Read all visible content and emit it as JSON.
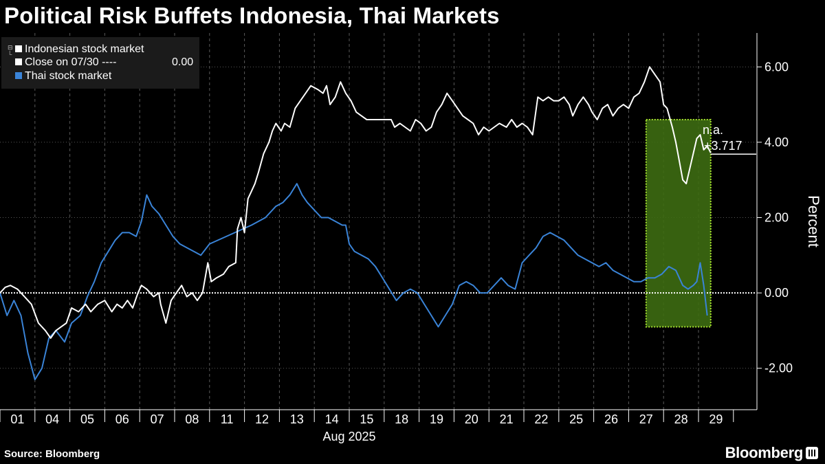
{
  "header": {
    "title": "Political Risk Buffets Indonesia, Thai Markets"
  },
  "footer": {
    "source": "Source: Bloomberg",
    "brand": "Bloomberg"
  },
  "legend": {
    "items": [
      {
        "label": "Indonesian stock market",
        "color": "#ffffff"
      },
      {
        "label": "Close on 07/30 ----",
        "value": "0.00",
        "color": "#ffffff"
      },
      {
        "label": "Thai stock market",
        "color": "#3a84d8"
      }
    ],
    "icons": [
      "tree-expand-icon",
      "tree-branch-icon"
    ]
  },
  "annotations": {
    "na_label": "n.a.",
    "last_value_label": "+3.717"
  },
  "colors": {
    "background": "#000000",
    "indonesia": "#ffffff",
    "thailand": "#3a84d8",
    "highlight_fill": "#3d6b12",
    "highlight_border": "#a6e22e",
    "grid": "#5a5a5a"
  },
  "chart_data": {
    "type": "line",
    "title": "Political Risk Buffets Indonesia, Thai Markets",
    "xlabel": "Aug 2025",
    "ylabel": "Percent",
    "ylim": [
      -3.1,
      6.9
    ],
    "yticks": [
      -2.0,
      0.0,
      2.0,
      4.0,
      6.0
    ],
    "ytick_labels": [
      "-2.00",
      "0.00",
      "2.00",
      "4.00",
      "6.00"
    ],
    "reference_line": {
      "name": "Close on 07/30",
      "value": 0.0
    },
    "categories": [
      "01",
      "04",
      "05",
      "06",
      "07",
      "08",
      "11",
      "12",
      "13",
      "14",
      "15",
      "18",
      "19",
      "20",
      "21",
      "22",
      "25",
      "26",
      "27",
      "28",
      "29"
    ],
    "x_start_date": "2025-08-01",
    "grid": true,
    "legend_position": "top-left",
    "series": [
      {
        "name": "Indonesian stock market",
        "points": [
          [
            0.0,
            0.0
          ],
          [
            0.15,
            0.15
          ],
          [
            0.3,
            0.2
          ],
          [
            0.5,
            0.1
          ],
          [
            0.7,
            -0.1
          ],
          [
            0.9,
            -0.3
          ],
          [
            1.1,
            -0.8
          ],
          [
            1.3,
            -1.0
          ],
          [
            1.45,
            -1.2
          ],
          [
            1.6,
            -1.0
          ],
          [
            1.75,
            -0.9
          ],
          [
            1.9,
            -0.8
          ],
          [
            2.05,
            -0.4
          ],
          [
            2.25,
            -0.5
          ],
          [
            2.45,
            -0.3
          ],
          [
            2.6,
            -0.5
          ],
          [
            2.8,
            -0.3
          ],
          [
            3.0,
            -0.2
          ],
          [
            3.2,
            -0.5
          ],
          [
            3.35,
            -0.3
          ],
          [
            3.5,
            -0.4
          ],
          [
            3.65,
            -0.2
          ],
          [
            3.8,
            -0.4
          ],
          [
            3.95,
            0.0
          ],
          [
            4.05,
            0.2
          ],
          [
            4.2,
            0.1
          ],
          [
            4.4,
            -0.1
          ],
          [
            4.55,
            0.0
          ],
          [
            4.6,
            -0.3
          ],
          [
            4.75,
            -0.8
          ],
          [
            4.9,
            -0.2
          ],
          [
            5.05,
            0.0
          ],
          [
            5.2,
            0.2
          ],
          [
            5.35,
            -0.1
          ],
          [
            5.5,
            0.0
          ],
          [
            5.65,
            -0.2
          ],
          [
            5.8,
            0.0
          ],
          [
            5.95,
            0.8
          ],
          [
            6.05,
            0.3
          ],
          [
            6.2,
            0.4
          ],
          [
            6.4,
            0.5
          ],
          [
            6.55,
            0.7
          ],
          [
            6.75,
            0.8
          ],
          [
            6.8,
            1.7
          ],
          [
            6.9,
            2.0
          ],
          [
            7.0,
            1.6
          ],
          [
            7.1,
            2.5
          ],
          [
            7.2,
            2.7
          ],
          [
            7.3,
            2.9
          ],
          [
            7.4,
            3.2
          ],
          [
            7.55,
            3.7
          ],
          [
            7.7,
            4.0
          ],
          [
            7.8,
            4.3
          ],
          [
            7.9,
            4.5
          ],
          [
            8.05,
            4.3
          ],
          [
            8.15,
            4.5
          ],
          [
            8.3,
            4.4
          ],
          [
            8.45,
            4.9
          ],
          [
            8.6,
            5.1
          ],
          [
            8.75,
            5.3
          ],
          [
            8.9,
            5.5
          ],
          [
            9.1,
            5.4
          ],
          [
            9.25,
            5.3
          ],
          [
            9.35,
            5.5
          ],
          [
            9.45,
            5.0
          ],
          [
            9.6,
            5.2
          ],
          [
            9.75,
            5.6
          ],
          [
            9.9,
            5.3
          ],
          [
            10.05,
            5.1
          ],
          [
            10.2,
            4.8
          ],
          [
            10.35,
            4.7
          ],
          [
            10.5,
            4.6
          ],
          [
            11.2,
            4.6
          ],
          [
            11.3,
            4.4
          ],
          [
            11.45,
            4.5
          ],
          [
            11.6,
            4.4
          ],
          [
            11.75,
            4.3
          ],
          [
            11.9,
            4.6
          ],
          [
            12.05,
            4.5
          ],
          [
            12.2,
            4.3
          ],
          [
            12.35,
            4.4
          ],
          [
            12.5,
            4.8
          ],
          [
            12.65,
            5.0
          ],
          [
            12.8,
            5.3
          ],
          [
            12.95,
            5.1
          ],
          [
            13.1,
            4.9
          ],
          [
            13.25,
            4.7
          ],
          [
            13.4,
            4.6
          ],
          [
            13.55,
            4.5
          ],
          [
            13.7,
            4.2
          ],
          [
            13.85,
            4.4
          ],
          [
            14.0,
            4.3
          ],
          [
            14.15,
            4.4
          ],
          [
            14.3,
            4.5
          ],
          [
            14.5,
            4.4
          ],
          [
            14.65,
            4.6
          ],
          [
            14.8,
            4.4
          ],
          [
            14.95,
            4.5
          ],
          [
            15.1,
            4.4
          ],
          [
            15.25,
            4.2
          ],
          [
            15.4,
            5.2
          ],
          [
            15.55,
            5.1
          ],
          [
            15.7,
            5.2
          ],
          [
            15.85,
            5.1
          ],
          [
            16.0,
            5.1
          ],
          [
            16.15,
            5.2
          ],
          [
            16.3,
            5.0
          ],
          [
            16.4,
            4.7
          ],
          [
            16.55,
            5.0
          ],
          [
            16.7,
            5.2
          ],
          [
            16.85,
            5.0
          ],
          [
            16.95,
            4.8
          ],
          [
            17.1,
            4.6
          ],
          [
            17.25,
            4.9
          ],
          [
            17.4,
            5.0
          ],
          [
            17.55,
            4.7
          ],
          [
            17.7,
            4.9
          ],
          [
            17.85,
            5.0
          ],
          [
            18.0,
            4.9
          ],
          [
            18.15,
            5.2
          ],
          [
            18.3,
            5.3
          ],
          [
            18.45,
            5.6
          ],
          [
            18.6,
            6.0
          ],
          [
            18.75,
            5.8
          ],
          [
            18.9,
            5.6
          ],
          [
            19.0,
            5.0
          ],
          [
            19.1,
            4.9
          ],
          [
            19.25,
            4.4
          ],
          [
            19.35,
            4.0
          ],
          [
            19.45,
            3.5
          ],
          [
            19.55,
            3.0
          ],
          [
            19.65,
            2.9
          ],
          [
            19.75,
            3.3
          ],
          [
            19.85,
            3.7
          ],
          [
            19.95,
            4.1
          ],
          [
            20.05,
            4.2
          ],
          [
            20.15,
            3.8
          ],
          [
            20.25,
            3.9
          ],
          [
            20.35,
            3.72
          ]
        ]
      },
      {
        "name": "Thai stock market",
        "points": [
          [
            0.0,
            0.0
          ],
          [
            0.2,
            -0.6
          ],
          [
            0.4,
            -0.2
          ],
          [
            0.6,
            -0.6
          ],
          [
            0.8,
            -1.6
          ],
          [
            1.0,
            -2.3
          ],
          [
            1.2,
            -2.0
          ],
          [
            1.4,
            -1.2
          ],
          [
            1.6,
            -1.0
          ],
          [
            1.85,
            -1.3
          ],
          [
            2.05,
            -0.8
          ],
          [
            2.3,
            -0.6
          ],
          [
            2.5,
            -0.1
          ],
          [
            2.7,
            0.3
          ],
          [
            2.9,
            0.8
          ],
          [
            3.1,
            1.1
          ],
          [
            3.3,
            1.4
          ],
          [
            3.5,
            1.6
          ],
          [
            3.7,
            1.6
          ],
          [
            3.9,
            1.5
          ],
          [
            4.05,
            1.9
          ],
          [
            4.2,
            2.6
          ],
          [
            4.35,
            2.3
          ],
          [
            4.55,
            2.1
          ],
          [
            4.75,
            1.8
          ],
          [
            4.95,
            1.5
          ],
          [
            5.15,
            1.3
          ],
          [
            5.35,
            1.2
          ],
          [
            5.55,
            1.1
          ],
          [
            5.75,
            1.0
          ],
          [
            6.0,
            1.3
          ],
          [
            7.2,
            1.8
          ],
          [
            7.6,
            2.0
          ],
          [
            7.9,
            2.3
          ],
          [
            8.1,
            2.4
          ],
          [
            8.3,
            2.6
          ],
          [
            8.5,
            2.9
          ],
          [
            8.65,
            2.6
          ],
          [
            8.8,
            2.4
          ],
          [
            9.0,
            2.2
          ],
          [
            9.2,
            2.0
          ],
          [
            9.4,
            2.0
          ],
          [
            9.6,
            1.9
          ],
          [
            9.8,
            1.8
          ],
          [
            9.9,
            1.8
          ],
          [
            10.0,
            1.3
          ],
          [
            10.15,
            1.1
          ],
          [
            10.35,
            1.0
          ],
          [
            10.55,
            0.9
          ],
          [
            10.75,
            0.7
          ],
          [
            10.95,
            0.4
          ],
          [
            11.15,
            0.1
          ],
          [
            11.35,
            -0.2
          ],
          [
            11.55,
            0.0
          ],
          [
            11.75,
            0.1
          ],
          [
            11.95,
            0.0
          ],
          [
            12.15,
            -0.3
          ],
          [
            12.35,
            -0.6
          ],
          [
            12.55,
            -0.9
          ],
          [
            12.75,
            -0.6
          ],
          [
            12.95,
            -0.3
          ],
          [
            13.15,
            0.2
          ],
          [
            13.35,
            0.3
          ],
          [
            13.55,
            0.2
          ],
          [
            13.75,
            0.0
          ],
          [
            13.95,
            0.0
          ],
          [
            14.15,
            0.2
          ],
          [
            14.35,
            0.4
          ],
          [
            14.55,
            0.2
          ],
          [
            14.75,
            0.1
          ],
          [
            14.95,
            0.8
          ],
          [
            15.15,
            1.0
          ],
          [
            15.35,
            1.2
          ],
          [
            15.55,
            1.5
          ],
          [
            15.75,
            1.6
          ],
          [
            15.95,
            1.5
          ],
          [
            16.15,
            1.4
          ],
          [
            16.35,
            1.2
          ],
          [
            16.55,
            1.0
          ],
          [
            16.75,
            0.9
          ],
          [
            16.95,
            0.8
          ],
          [
            17.15,
            0.7
          ],
          [
            17.35,
            0.8
          ],
          [
            17.55,
            0.6
          ],
          [
            17.75,
            0.5
          ],
          [
            17.95,
            0.4
          ],
          [
            18.15,
            0.3
          ],
          [
            18.35,
            0.3
          ],
          [
            18.55,
            0.4
          ],
          [
            18.75,
            0.4
          ],
          [
            18.95,
            0.5
          ],
          [
            19.15,
            0.7
          ],
          [
            19.35,
            0.6
          ],
          [
            19.55,
            0.2
          ],
          [
            19.7,
            0.1
          ],
          [
            19.85,
            0.2
          ],
          [
            19.95,
            0.3
          ],
          [
            20.05,
            0.8
          ],
          [
            20.15,
            0.2
          ],
          [
            20.25,
            -0.6
          ]
        ]
      }
    ],
    "highlight": {
      "x_range": [
        18.5,
        20.35
      ],
      "y_range": [
        -0.9,
        4.6
      ]
    }
  }
}
